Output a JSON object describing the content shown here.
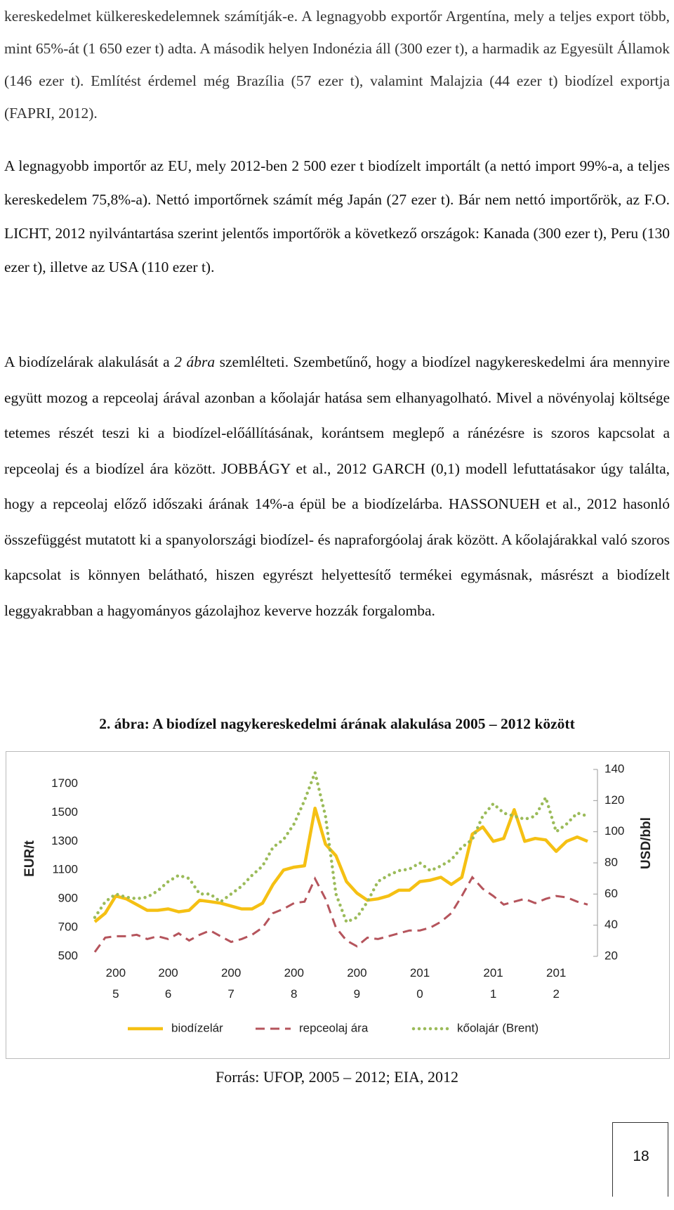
{
  "body": {
    "p1": "kereskedelmet külkereskedelemnek számítják-e. A legnagyobb exportőr Argentína, mely a teljes export több, mint 65%-át (1 650 ezer t) adta. A második helyen Indonézia áll (300 ezer t), a harmadik az Egyesült Államok (146 ezer t). Említést érdemel még Brazília (57 ezer t), valamint Malajzia (44 ezer t) biodízel exportja (FAPRI, 2012).",
    "p2": "A legnagyobb importőr az EU, mely 2012-ben 2 500 ezer t biodízelt importált (a nettó import 99%-a, a teljes kereskedelem 75,8%-a). Nettó importőrnek számít még Japán (27 ezer t). Bár nem nettó importőrök, az F.O. LICHT, 2012 nyilvántartása szerint jelentős importőrök a következő országok: Kanada (300 ezer t), Peru (130 ezer t), illetve az USA (110 ezer t).",
    "p3": {
      "before": "A biodízelárak alakulását a",
      "italic": "2 ábra",
      "after": "szemlélteti. Szembetűnő, hogy a biodízel nagykereskedelmi ára mennyire együtt mozog a repceolaj árával azonban a kőolajár hatása sem elhanyagolható. Mivel a növényolaj költsége tetemes részét teszi ki a biodízel-előállításának, korántsem meglepő a ránézésre is szoros kapcsolat a repceolaj és a biodízel ára között. JOBBÁGY et al., 2012 GARCH (0,1) modell lefuttatásakor úgy találta, hogy a repceolaj előző időszaki árának 14%-a épül be a biodízelárba. HASSONUEH et al., 2012 hasonló összefüggést mutatott ki a spanyolországi biodízel- és napraforgóolaj árak között. A kőolajárakkal való szoros kapcsolat is könnyen belátható, hiszen egyrészt helyettesítő termékei egymásnak, másrészt a biodízelt leggyakrabban a hagyományos gázolajhoz keverve hozzák forgalomba."
    }
  },
  "figure": {
    "caption": "2. ábra: A biodízel nagykereskedelmi árának alakulása 2005 – 2012 között",
    "source": "Forrás: UFOP, 2005 – 2012; EIA, 2012"
  },
  "chart_data": {
    "type": "line",
    "ylabel": "EUR/t",
    "y2label": "USD/bbl",
    "categories": [
      null,
      null,
      "2005",
      null,
      null,
      null,
      null,
      "2006",
      null,
      null,
      null,
      null,
      null,
      "2007",
      null,
      null,
      null,
      null,
      null,
      "2008",
      null,
      null,
      null,
      null,
      null,
      "2009",
      null,
      null,
      null,
      null,
      null,
      "2010",
      null,
      null,
      null,
      null,
      null,
      null,
      "2011",
      null,
      null,
      null,
      null,
      null,
      "2012",
      null,
      null,
      null
    ],
    "ylim": [
      500,
      1800
    ],
    "yticks": [
      500,
      700,
      900,
      1100,
      1300,
      1500,
      1700
    ],
    "y2lim": [
      20,
      140
    ],
    "y2ticks": [
      20,
      40,
      60,
      80,
      100,
      120,
      140
    ],
    "legend": "bottom",
    "series": [
      {
        "name": "biodízelár",
        "color": "#f5c013",
        "style": "solid",
        "values": [
          740,
          800,
          920,
          900,
          860,
          820,
          820,
          830,
          810,
          820,
          890,
          880,
          870,
          850,
          830,
          830,
          870,
          1000,
          1100,
          1120,
          1130,
          1530,
          1280,
          1200,
          1020,
          940,
          890,
          900,
          920,
          960,
          960,
          1020,
          1030,
          1050,
          1000,
          1050,
          1350,
          1400,
          1300,
          1320,
          1520,
          1300,
          1320,
          1310,
          1230,
          1300,
          1330,
          1300
        ]
      },
      {
        "name": "repceolaj ára",
        "color": "#b5545c",
        "style": "dashed",
        "values": [
          530,
          630,
          640,
          640,
          650,
          620,
          640,
          620,
          660,
          610,
          650,
          680,
          640,
          600,
          620,
          650,
          700,
          800,
          830,
          870,
          880,
          1040,
          900,
          700,
          610,
          570,
          630,
          620,
          640,
          660,
          680,
          680,
          700,
          740,
          800,
          920,
          1050,
          970,
          920,
          860,
          880,
          900,
          870,
          900,
          920,
          910,
          880,
          860
        ]
      },
      {
        "name": "kőolajár (Brent)",
        "color": "#9bbb59",
        "style": "dotted",
        "axis": "y2",
        "values": [
          45,
          55,
          60,
          58,
          57,
          58,
          62,
          68,
          72,
          70,
          60,
          60,
          55,
          60,
          65,
          72,
          78,
          90,
          95,
          105,
          120,
          138,
          110,
          60,
          42,
          45,
          55,
          68,
          72,
          75,
          76,
          80,
          75,
          78,
          82,
          90,
          95,
          110,
          118,
          112,
          110,
          108,
          110,
          122,
          100,
          105,
          112,
          110
        ]
      }
    ]
  },
  "page_number": "18"
}
